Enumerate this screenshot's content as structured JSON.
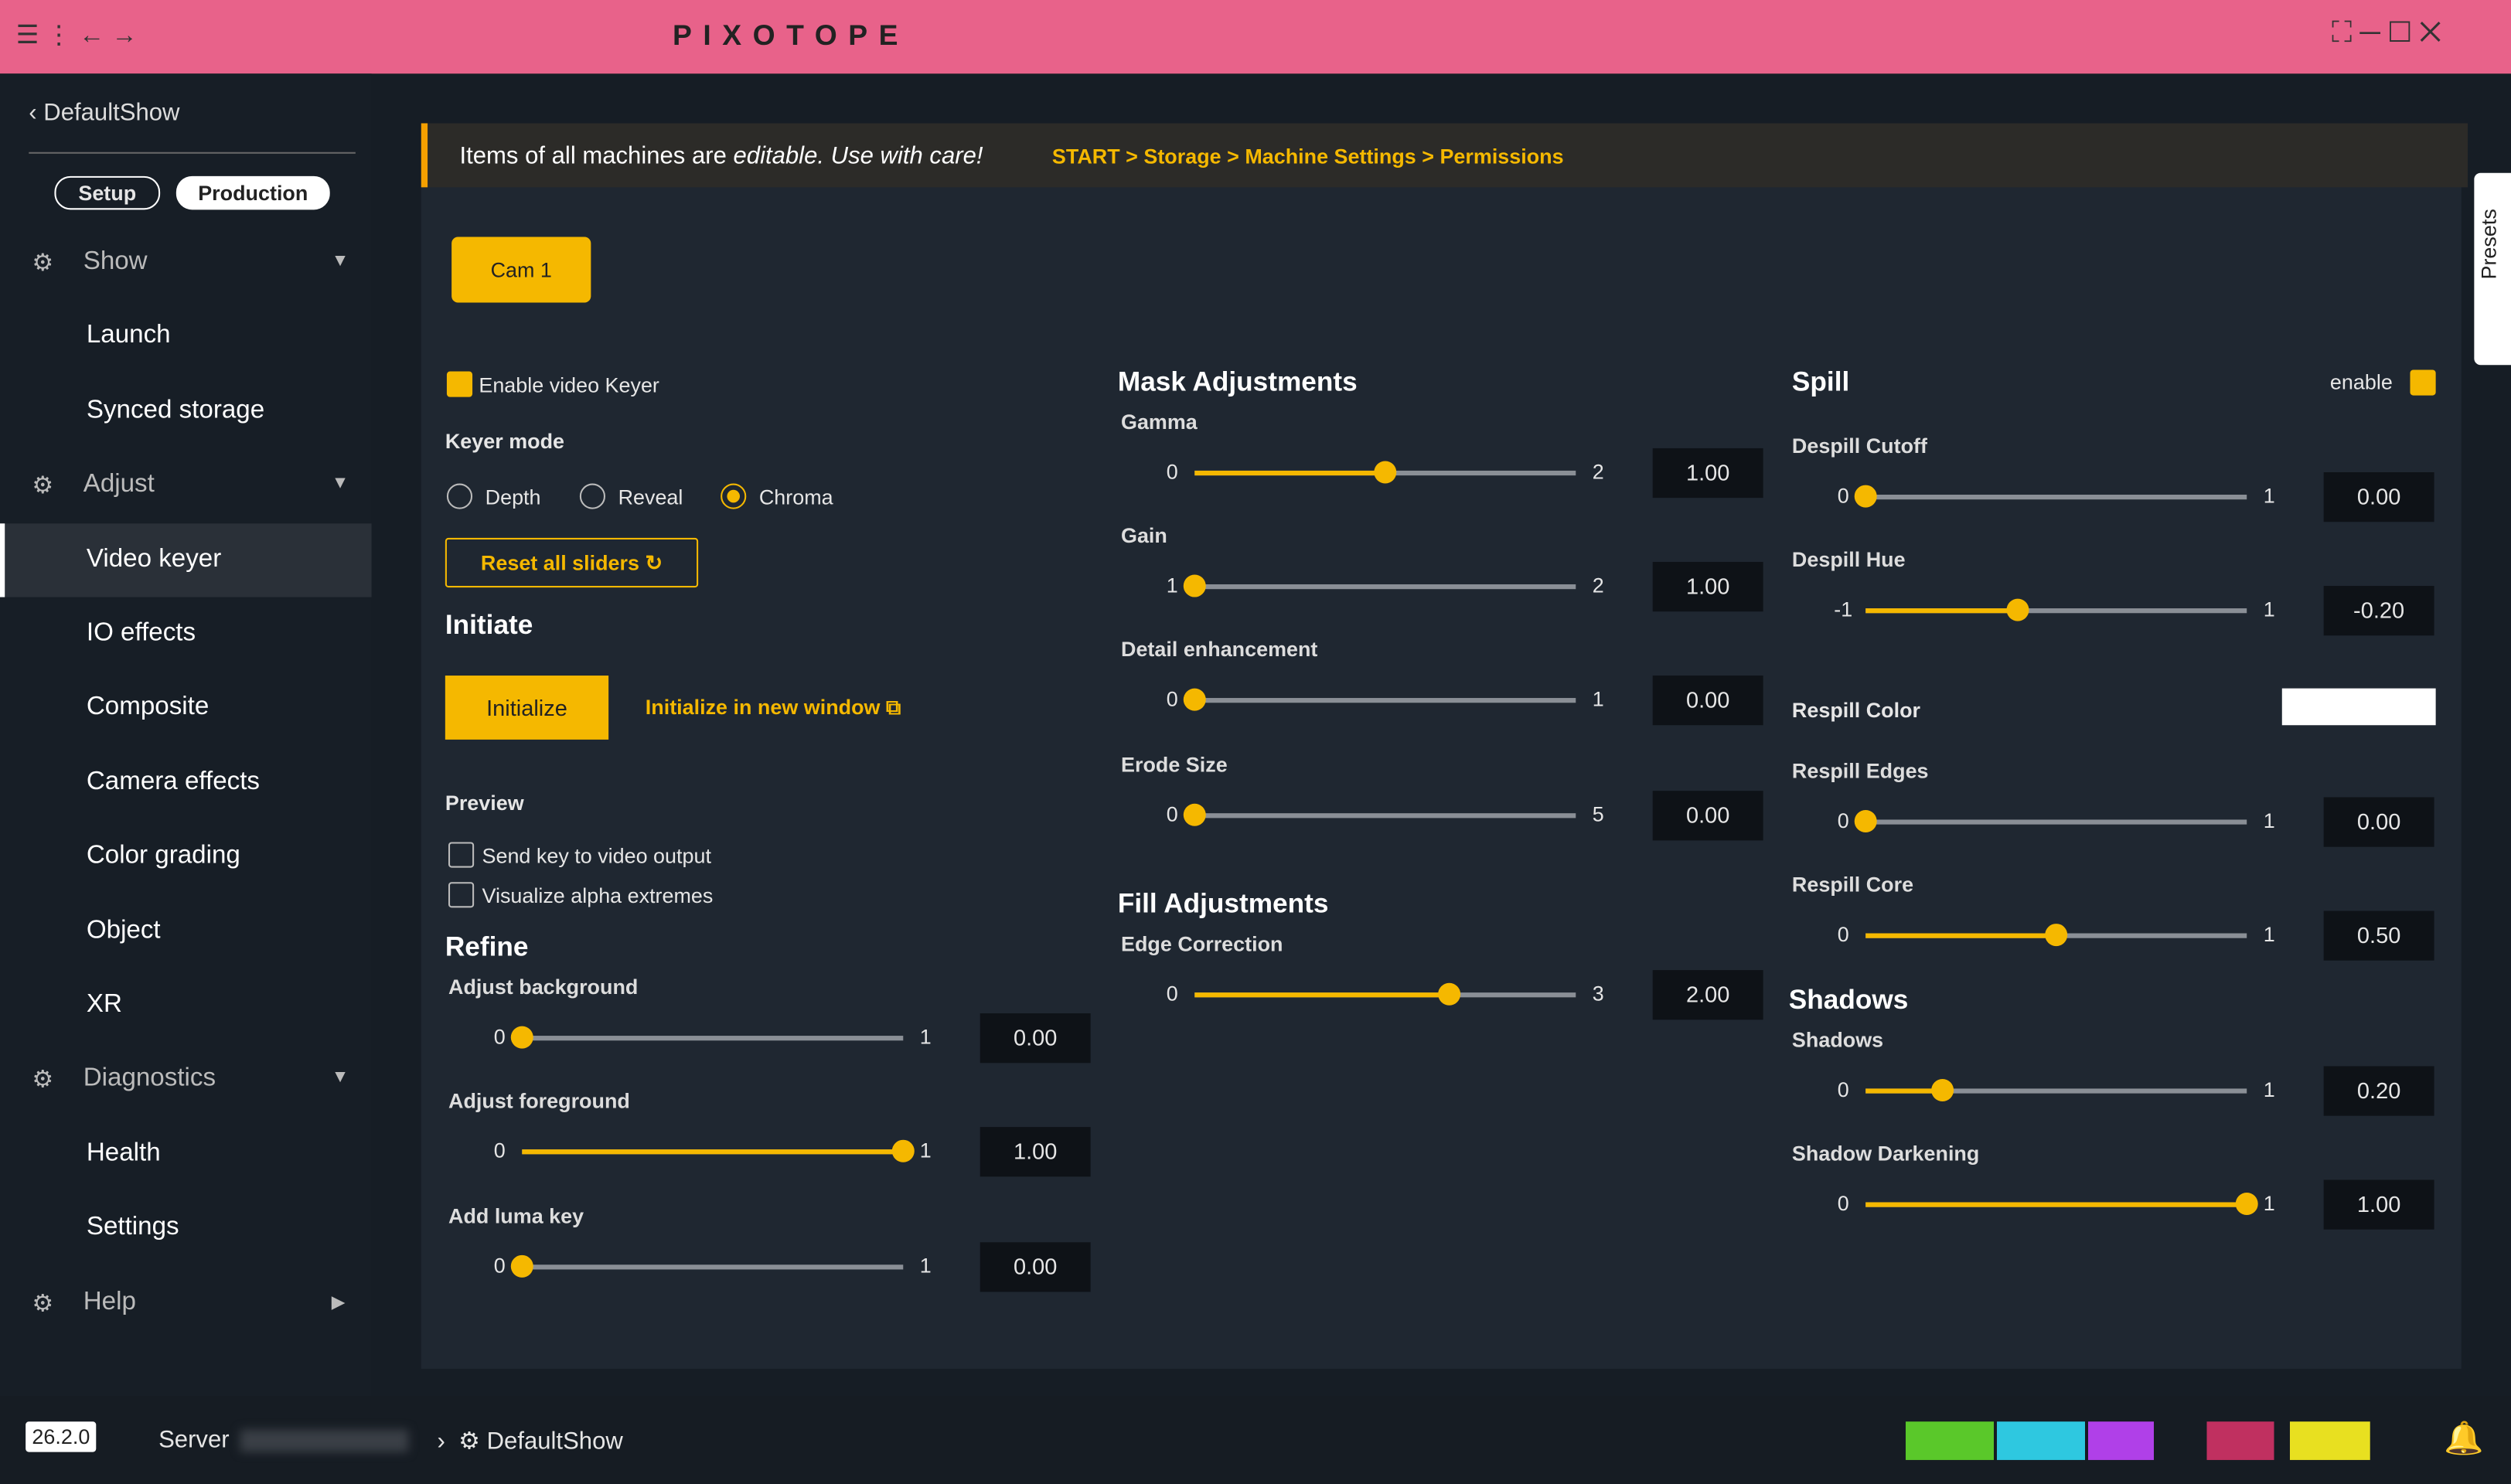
{
  "titlebar": {
    "logo": "PIXOTOPE"
  },
  "sidebar": {
    "back": "DefaultShow",
    "tabs": [
      "Setup",
      "Production"
    ],
    "sections": [
      {
        "label": "Show",
        "items": [
          {
            "label": "Launch"
          },
          {
            "label": "Synced storage"
          }
        ]
      },
      {
        "label": "Adjust",
        "items": [
          {
            "label": "Video keyer",
            "active": true
          },
          {
            "label": "IO effects"
          },
          {
            "label": "Composite"
          },
          {
            "label": "Camera effects"
          },
          {
            "label": "Color grading"
          },
          {
            "label": "Object"
          },
          {
            "label": "XR"
          }
        ]
      },
      {
        "label": "Diagnostics",
        "items": [
          {
            "label": "Health"
          },
          {
            "label": "Settings"
          }
        ]
      },
      {
        "label": "Help",
        "items": []
      }
    ]
  },
  "banner": {
    "text": "Items of all machines are ",
    "emphasis": "editable. Use with care!",
    "breadcrumb": "START > Storage > Machine Settings > Permissions"
  },
  "camera_tab": "Cam 1",
  "presets_tab": "Presets",
  "keyer": {
    "enable": {
      "label": "Enable video Keyer",
      "checked": true
    },
    "mode_label": "Keyer mode",
    "modes": [
      {
        "label": "Depth"
      },
      {
        "label": "Reveal"
      },
      {
        "label": "Chroma",
        "selected": true
      }
    ],
    "reset": "Reset all sliders",
    "initiate": "Initiate",
    "initialize": "Initialize",
    "initialize_new": "Initialize in new window",
    "preview": "Preview",
    "preview_options": [
      {
        "label": "Send key to video output",
        "checked": false
      },
      {
        "label": "Visualize alpha extremes",
        "checked": false
      }
    ]
  },
  "refine": {
    "title": "Refine",
    "sliders": [
      {
        "label": "Adjust background",
        "min": "0",
        "max": "1",
        "value": "0.00"
      },
      {
        "label": "Adjust foreground",
        "min": "0",
        "max": "1",
        "value": "1.00"
      },
      {
        "label": "Add luma key",
        "min": "0",
        "max": "1",
        "value": "0.00"
      }
    ]
  },
  "mask": {
    "title": "Mask Adjustments",
    "sliders": [
      {
        "label": "Gamma",
        "min": "0",
        "max": "2",
        "value": "1.00"
      },
      {
        "label": "Gain",
        "min": "1",
        "max": "2",
        "value": "1.00"
      },
      {
        "label": "Detail enhancement",
        "min": "0",
        "max": "1",
        "value": "0.00"
      },
      {
        "label": "Erode Size",
        "min": "0",
        "max": "5",
        "value": "0.00"
      }
    ]
  },
  "fill": {
    "title": "Fill Adjustments",
    "sliders": [
      {
        "label": "Edge Correction",
        "min": "0",
        "max": "3",
        "value": "2.00"
      }
    ]
  },
  "spill": {
    "title": "Spill",
    "enable": {
      "label": "enable",
      "checked": true
    },
    "sliders": [
      {
        "label": "Despill Cutoff",
        "min": "0",
        "max": "1",
        "value": "0.00"
      },
      {
        "label": "Despill Hue",
        "min": "-1",
        "max": "1",
        "value": "-0.20"
      }
    ],
    "respill_color": {
      "label": "Respill Color",
      "color": "#ffffff"
    },
    "respill_sliders": [
      {
        "label": "Respill Edges",
        "min": "0",
        "max": "1",
        "value": "0.00"
      },
      {
        "label": "Respill Core",
        "min": "0",
        "max": "1",
        "value": "0.50"
      }
    ]
  },
  "shadows": {
    "title": "Shadows",
    "sliders": [
      {
        "label": "Shadows",
        "min": "0",
        "max": "1",
        "value": "0.20"
      },
      {
        "label": "Shadow Darkening",
        "min": "0",
        "max": "1",
        "value": "1.00"
      }
    ]
  },
  "footer": {
    "version": "26.2.0",
    "server": "Server",
    "show": "DefaultShow"
  }
}
